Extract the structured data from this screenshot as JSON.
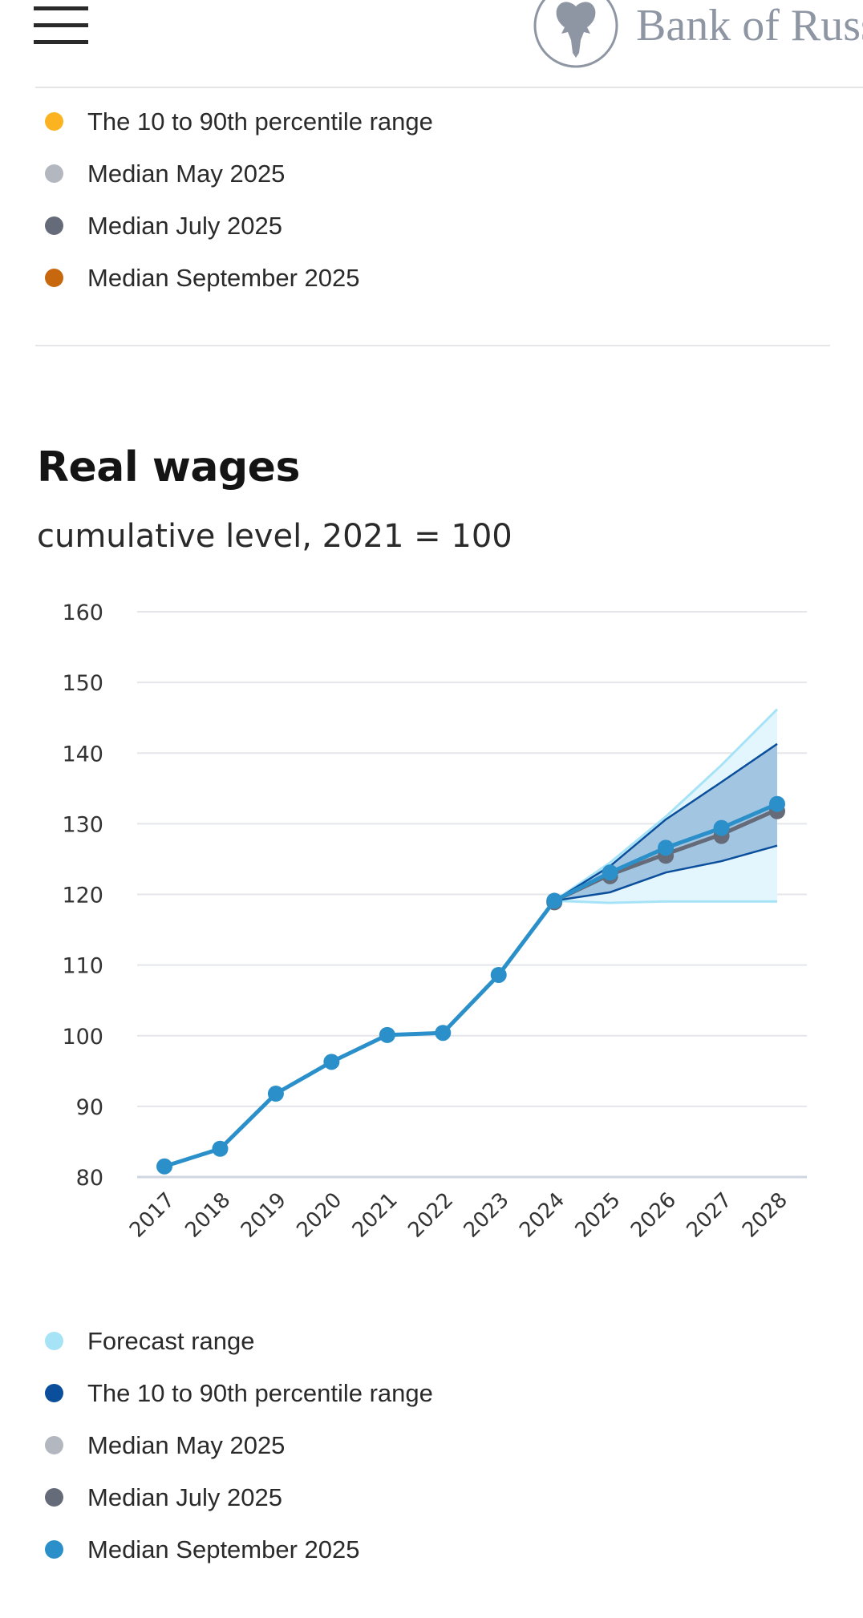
{
  "header": {
    "menu_icon": "hamburger-menu-icon",
    "logo_icon": "double-headed-eagle-emblem-icon",
    "brand_text": "Bank of Russ"
  },
  "previous_legend": {
    "items": [
      {
        "label": "The 10 to 90th percentile range",
        "color": "#fbb321"
      },
      {
        "label": "Median May 2025",
        "color": "#b3b7c0"
      },
      {
        "label": "Median July 2025",
        "color": "#656b78"
      },
      {
        "label": "Median September 2025",
        "color": "#c7680f"
      }
    ]
  },
  "section": {
    "title": "Real wages",
    "subtitle": "cumulative level, 2021 = 100"
  },
  "chart_data": {
    "type": "line",
    "title": "Real wages",
    "subtitle": "cumulative level, 2021 = 100",
    "xlabel": "",
    "ylabel": "",
    "ylim": [
      80,
      160
    ],
    "yticks": [
      "160",
      "150",
      "140",
      "130",
      "120",
      "110",
      "100",
      "90",
      "80"
    ],
    "ytick_values": [
      160,
      150,
      140,
      130,
      120,
      110,
      100,
      90,
      80
    ],
    "categories": [
      "2017",
      "2018",
      "2019",
      "2020",
      "2021",
      "2022",
      "2023",
      "2024",
      "2025",
      "2026",
      "2027",
      "2028"
    ],
    "grid": true,
    "legend_position": "bottom",
    "series": [
      {
        "name": "Forecast range",
        "kind": "band",
        "color": "#a7e3f7",
        "x": [
          "2024",
          "2025",
          "2026",
          "2027",
          "2028"
        ],
        "upper": [
          119.1,
          124.5,
          131.0,
          138.3,
          146.2
        ],
        "lower": [
          119.1,
          118.8,
          119.0,
          119.0,
          119.0
        ]
      },
      {
        "name": "The 10 to 90th percentile range",
        "kind": "band",
        "color": "#0b4f9c",
        "x": [
          "2024",
          "2025",
          "2026",
          "2027",
          "2028"
        ],
        "upper": [
          119.1,
          124.0,
          130.6,
          135.9,
          141.3
        ],
        "lower": [
          119.1,
          120.3,
          123.1,
          124.7,
          126.9
        ]
      },
      {
        "name": "Median May 2025",
        "kind": "line",
        "color": "#b3b7c0",
        "x": [],
        "values": []
      },
      {
        "name": "Median July 2025",
        "kind": "line",
        "color": "#656b78",
        "x": [
          "2024",
          "2025",
          "2026",
          "2027",
          "2028"
        ],
        "values": [
          119.1,
          122.8,
          125.7,
          128.5,
          132.0
        ]
      },
      {
        "name": "Median September 2025",
        "kind": "line",
        "color": "#2b90c9",
        "x": [
          "2017",
          "2018",
          "2019",
          "2020",
          "2021",
          "2022",
          "2023",
          "2024",
          "2025",
          "2026",
          "2027",
          "2028"
        ],
        "values": [
          81.5,
          84.0,
          91.8,
          96.3,
          100.1,
          100.4,
          108.6,
          119.1,
          123.1,
          126.6,
          129.4,
          132.8
        ]
      }
    ]
  },
  "chart_legend": {
    "items": [
      {
        "label": "Forecast range",
        "color": "#a7e3f7"
      },
      {
        "label": "The 10 to 90th percentile range",
        "color": "#0b4f9c"
      },
      {
        "label": "Median May 2025",
        "color": "#b3b7c0"
      },
      {
        "label": "Median July 2025",
        "color": "#656b78"
      },
      {
        "label": "Median September 2025",
        "color": "#2b90c9"
      }
    ]
  }
}
